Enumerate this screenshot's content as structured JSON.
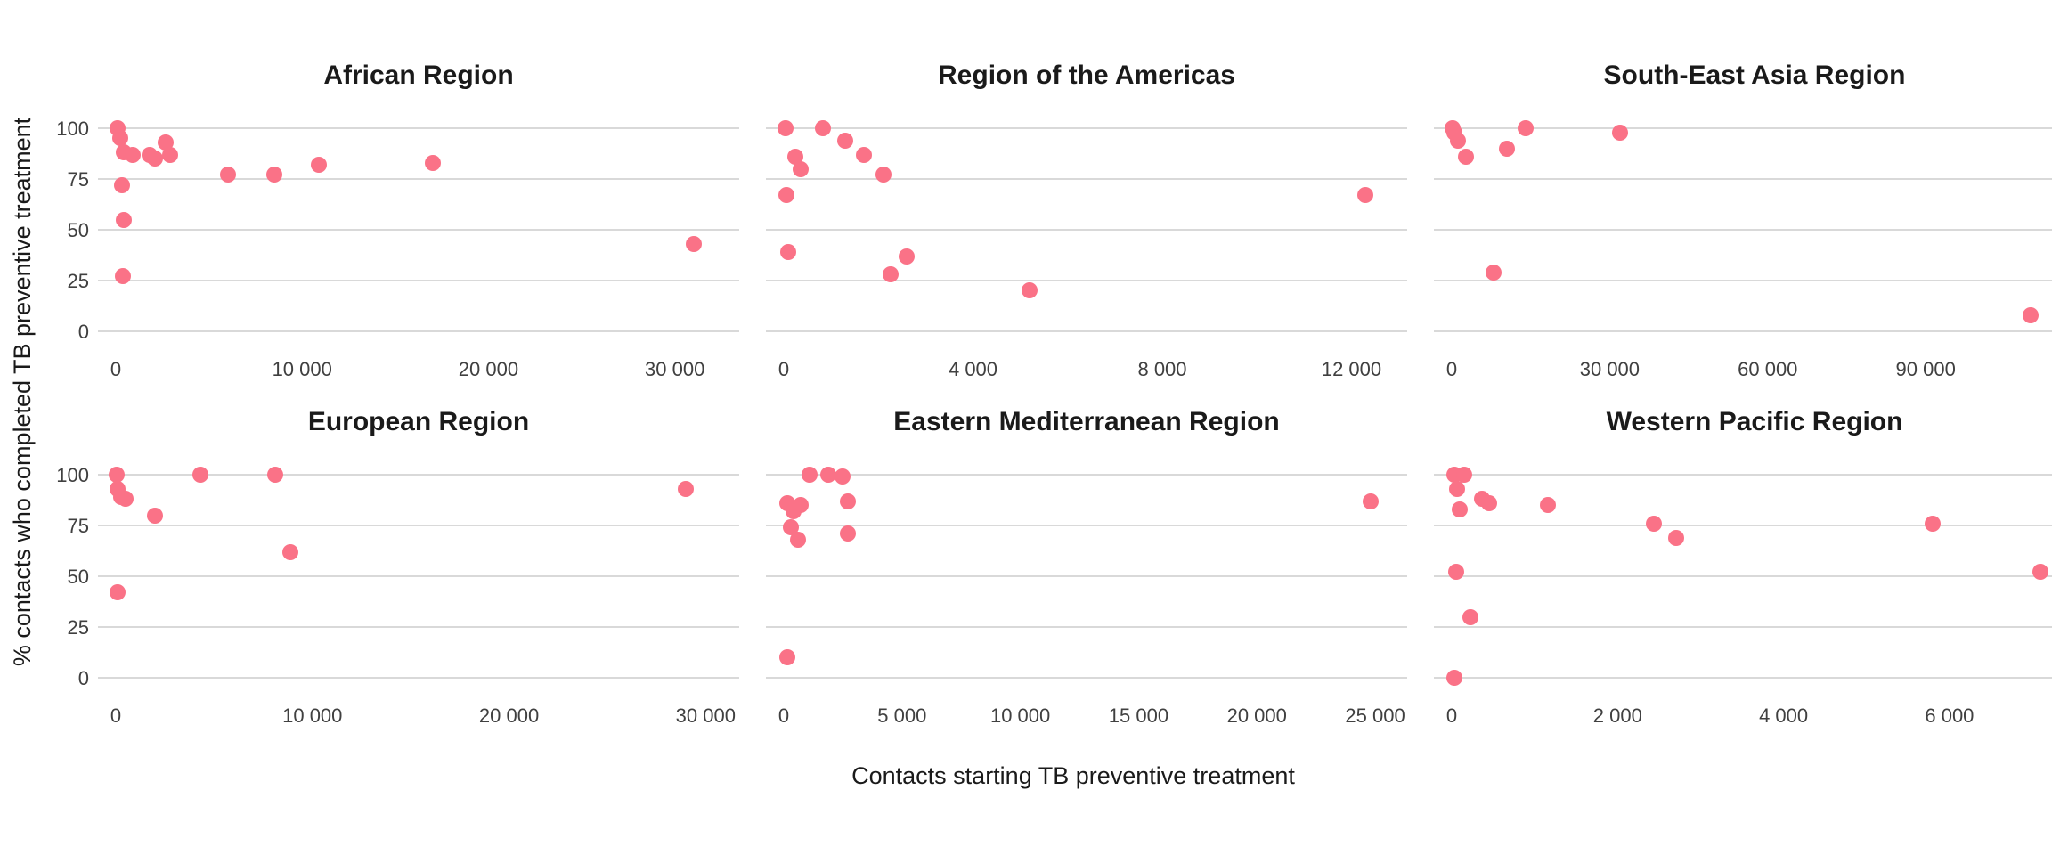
{
  "figure": {
    "x_axis_title": "Contacts starting TB preventive treatment",
    "y_axis_title": "% contacts who completed TB preventive treatment"
  },
  "colors": {
    "point": "#FA7287",
    "gridline": "#D9D9D9",
    "facet_title_text": "#1A1A1A",
    "axis_title_text": "#1A1A1A",
    "tick_text": "#404040",
    "background": "#FFFFFF"
  },
  "chart_data": {
    "type": "scatter",
    "title": "",
    "xlabel": "Contacts starting TB preventive treatment",
    "ylabel": "% contacts who completed TB preventive treatment",
    "ylim": [
      0,
      100
    ],
    "y_ticks": [
      100,
      75,
      50,
      25,
      0
    ],
    "grid": "horizontal-only",
    "legend": "none",
    "facet_layout": "2-rows-3-cols",
    "facets": [
      {
        "title": "African Region",
        "x_tick_labels": [
          "0",
          "10 000",
          "20 000",
          "30 000"
        ],
        "x_tick_values": [
          0,
          10000,
          20000,
          30000
        ],
        "x_domain": [
          0,
          32500
        ],
        "points": [
          [
            100,
            100
          ],
          [
            250,
            95
          ],
          [
            450,
            88
          ],
          [
            900,
            87
          ],
          [
            1800,
            87
          ],
          [
            2100,
            85
          ],
          [
            2700,
            93
          ],
          [
            2900,
            87
          ],
          [
            350,
            72
          ],
          [
            430,
            55
          ],
          [
            400,
            27
          ],
          [
            6000,
            77
          ],
          [
            8500,
            77
          ],
          [
            10900,
            82
          ],
          [
            17000,
            83
          ],
          [
            31000,
            43
          ]
        ]
      },
      {
        "title": "Region of the Americas",
        "x_tick_labels": [
          "0",
          "4 000",
          "8 000",
          "12 000"
        ],
        "x_tick_values": [
          0,
          4000,
          8000,
          12000
        ],
        "x_domain": [
          0,
          12800
        ],
        "points": [
          [
            30,
            100
          ],
          [
            830,
            100
          ],
          [
            1300,
            94
          ],
          [
            1700,
            87
          ],
          [
            2100,
            77
          ],
          [
            250,
            86
          ],
          [
            350,
            80
          ],
          [
            50,
            67
          ],
          [
            100,
            39
          ],
          [
            2600,
            37
          ],
          [
            2250,
            28
          ],
          [
            5200,
            20
          ],
          [
            12300,
            67
          ]
        ]
      },
      {
        "title": "South-East Asia Region",
        "x_tick_labels": [
          "0",
          "30 000",
          "60 000",
          "90 000"
        ],
        "x_tick_values": [
          0,
          30000,
          60000,
          90000
        ],
        "x_domain": [
          0,
          115000
        ],
        "points": [
          [
            200,
            100
          ],
          [
            500,
            98
          ],
          [
            1200,
            94
          ],
          [
            2700,
            86
          ],
          [
            10500,
            90
          ],
          [
            14000,
            100
          ],
          [
            32000,
            98
          ],
          [
            8000,
            29
          ],
          [
            110000,
            8
          ]
        ]
      },
      {
        "title": "European Region",
        "x_tick_labels": [
          "0",
          "10 000",
          "20 000",
          "30 000"
        ],
        "x_tick_values": [
          0,
          10000,
          20000,
          30000
        ],
        "x_domain": [
          0,
          30800
        ],
        "points": [
          [
            50,
            100
          ],
          [
            100,
            93
          ],
          [
            250,
            89
          ],
          [
            500,
            88
          ],
          [
            2000,
            80
          ],
          [
            4300,
            100
          ],
          [
            8100,
            100
          ],
          [
            8900,
            62
          ],
          [
            100,
            42
          ],
          [
            29000,
            93
          ]
        ]
      },
      {
        "title": "Eastern Mediterranean Region",
        "x_tick_labels": [
          "0",
          "5 000",
          "10 000",
          "15 000",
          "20 000",
          "25 000"
        ],
        "x_tick_values": [
          0,
          5000,
          10000,
          15000,
          20000,
          25000
        ],
        "x_domain": [
          0,
          25600
        ],
        "points": [
          [
            1100,
            100
          ],
          [
            1900,
            100
          ],
          [
            2500,
            99
          ],
          [
            2700,
            87
          ],
          [
            150,
            86
          ],
          [
            400,
            82
          ],
          [
            700,
            85
          ],
          [
            300,
            74
          ],
          [
            600,
            68
          ],
          [
            2700,
            71
          ],
          [
            150,
            10
          ],
          [
            24800,
            87
          ]
        ]
      },
      {
        "title": "Western Pacific Region",
        "x_tick_labels": [
          "0",
          "2 000",
          "4 000",
          "6 000"
        ],
        "x_tick_values": [
          0,
          2000,
          4000,
          6000
        ],
        "x_domain": [
          0,
          7300
        ],
        "points": [
          [
            30,
            100
          ],
          [
            150,
            100
          ],
          [
            60,
            93
          ],
          [
            100,
            83
          ],
          [
            360,
            88
          ],
          [
            450,
            86
          ],
          [
            1160,
            85
          ],
          [
            2440,
            76
          ],
          [
            2700,
            69
          ],
          [
            5800,
            76
          ],
          [
            50,
            52
          ],
          [
            7100,
            52
          ],
          [
            230,
            30
          ],
          [
            30,
            0
          ]
        ]
      }
    ]
  }
}
